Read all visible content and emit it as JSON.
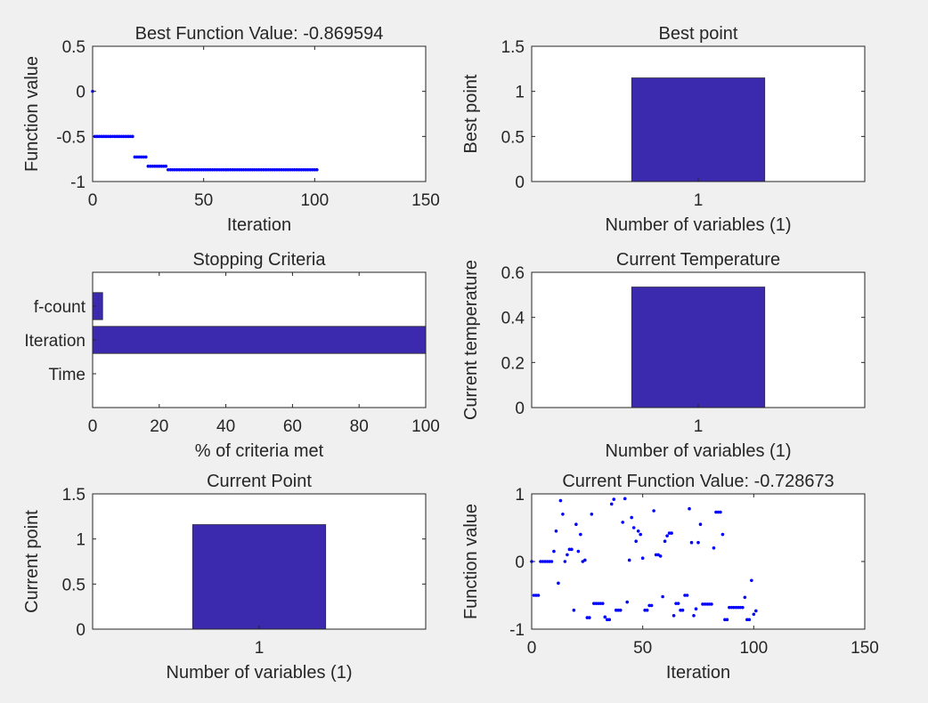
{
  "figure": {
    "background": "#f0f0f0",
    "bar_color": "#3b2aad",
    "marker_color": "#0000ff"
  },
  "chart_data": [
    {
      "id": "best-function-value",
      "type": "scatter",
      "title": "Best Function Value: -0.869594",
      "xlabel": "Iteration",
      "ylabel": "Function value",
      "xlim": [
        0,
        150
      ],
      "ylim": [
        -1,
        0.5
      ],
      "xticks": [
        0,
        50,
        100,
        150
      ],
      "xtick_labels": [
        "0",
        "50",
        "100",
        "150"
      ],
      "yticks": [
        -1,
        -0.5,
        0,
        0.5
      ],
      "ytick_labels": [
        "-1",
        "-0.5",
        "0",
        "0.5"
      ],
      "segments": [
        {
          "x_start": 0,
          "x_end": 0,
          "y": 0
        },
        {
          "x_start": 1,
          "x_end": 18,
          "y": -0.5
        },
        {
          "x_start": 19,
          "x_end": 24,
          "y": -0.728
        },
        {
          "x_start": 25,
          "x_end": 33,
          "y": -0.83
        },
        {
          "x_start": 34,
          "x_end": 101,
          "y": -0.869594
        }
      ]
    },
    {
      "id": "best-point",
      "type": "bar",
      "title": "Best point",
      "xlabel": "Number of variables (1)",
      "ylabel": "Best point",
      "categories": [
        "1"
      ],
      "values": [
        1.15
      ],
      "ylim": [
        0,
        1.5
      ],
      "yticks": [
        0,
        0.5,
        1,
        1.5
      ],
      "ytick_labels": [
        "0",
        "0.5",
        "1",
        "1.5"
      ]
    },
    {
      "id": "stopping-criteria",
      "type": "bar",
      "orientation": "horizontal",
      "title": "Stopping Criteria",
      "xlabel": "% of criteria met",
      "ylabel": "",
      "categories": [
        "Time",
        "Iteration",
        "f-count"
      ],
      "values": [
        0,
        100,
        3
      ],
      "xlim": [
        0,
        100
      ],
      "xticks": [
        0,
        20,
        40,
        60,
        80,
        100
      ],
      "xtick_labels": [
        "0",
        "20",
        "40",
        "60",
        "80",
        "100"
      ]
    },
    {
      "id": "current-temperature",
      "type": "bar",
      "title": "Current Temperature",
      "xlabel": "Number of variables (1)",
      "ylabel": "Current temperature",
      "categories": [
        "1"
      ],
      "values": [
        0.535
      ],
      "ylim": [
        0,
        0.6
      ],
      "yticks": [
        0,
        0.2,
        0.4,
        0.6
      ],
      "ytick_labels": [
        "0",
        "0.2",
        "0.4",
        "0.6"
      ]
    },
    {
      "id": "current-point",
      "type": "bar",
      "title": "Current Point",
      "xlabel": "Number of variables (1)",
      "ylabel": "Current point",
      "categories": [
        "1"
      ],
      "values": [
        1.16
      ],
      "ylim": [
        0,
        1.5
      ],
      "yticks": [
        0,
        0.5,
        1,
        1.5
      ],
      "ytick_labels": [
        "0",
        "0.5",
        "1",
        "1.5"
      ]
    },
    {
      "id": "current-function-value",
      "type": "scatter",
      "title": "Current Function Value: -0.728673",
      "xlabel": "Iteration",
      "ylabel": "Function value",
      "xlim": [
        0,
        150
      ],
      "ylim": [
        -1,
        1
      ],
      "xticks": [
        0,
        50,
        100,
        150
      ],
      "xtick_labels": [
        "0",
        "50",
        "100",
        "150"
      ],
      "yticks": [
        -1,
        0,
        1
      ],
      "ytick_labels": [
        "-1",
        "0",
        "1"
      ],
      "points": [
        [
          0,
          0
        ],
        [
          1,
          -0.5
        ],
        [
          2,
          -0.5
        ],
        [
          3,
          -0.5
        ],
        [
          4,
          0
        ],
        [
          5,
          0
        ],
        [
          6,
          0
        ],
        [
          7,
          0
        ],
        [
          8,
          0
        ],
        [
          9,
          0
        ],
        [
          10,
          0.15
        ],
        [
          11,
          0.45
        ],
        [
          12,
          -0.32
        ],
        [
          13,
          0.9
        ],
        [
          14,
          0.7
        ],
        [
          15,
          0
        ],
        [
          16,
          0.1
        ],
        [
          17,
          0.18
        ],
        [
          18,
          0.18
        ],
        [
          19,
          -0.72
        ],
        [
          20,
          0.55
        ],
        [
          21,
          0.15
        ],
        [
          22,
          0.4
        ],
        [
          23,
          0
        ],
        [
          24,
          0.02
        ],
        [
          25,
          -0.83
        ],
        [
          26,
          -0.83
        ],
        [
          27,
          0.7
        ],
        [
          28,
          -0.62
        ],
        [
          29,
          -0.62
        ],
        [
          30,
          -0.62
        ],
        [
          31,
          -0.62
        ],
        [
          32,
          -0.62
        ],
        [
          33,
          -0.82
        ],
        [
          34,
          -0.86
        ],
        [
          35,
          -0.86
        ],
        [
          36,
          0.85
        ],
        [
          37,
          0.92
        ],
        [
          38,
          -0.72
        ],
        [
          39,
          -0.72
        ],
        [
          40,
          -0.72
        ],
        [
          41,
          0.58
        ],
        [
          42,
          0.93
        ],
        [
          43,
          -0.6
        ],
        [
          44,
          0.02
        ],
        [
          45,
          0.65
        ],
        [
          46,
          0.5
        ],
        [
          47,
          0.3
        ],
        [
          48,
          0.45
        ],
        [
          49,
          0.4
        ],
        [
          50,
          0.05
        ],
        [
          51,
          -0.72
        ],
        [
          52,
          -0.72
        ],
        [
          53,
          -0.65
        ],
        [
          54,
          -0.65
        ],
        [
          55,
          0.75
        ],
        [
          56,
          0.1
        ],
        [
          57,
          0.1
        ],
        [
          58,
          0.08
        ],
        [
          59,
          -0.52
        ],
        [
          60,
          0.3
        ],
        [
          61,
          0.38
        ],
        [
          62,
          0.42
        ],
        [
          63,
          0.42
        ],
        [
          64,
          -0.8
        ],
        [
          65,
          -0.62
        ],
        [
          66,
          -0.62
        ],
        [
          67,
          -0.72
        ],
        [
          68,
          -0.72
        ],
        [
          69,
          -0.5
        ],
        [
          70,
          -0.5
        ],
        [
          71,
          0.78
        ],
        [
          72,
          0.28
        ],
        [
          73,
          -0.8
        ],
        [
          74,
          -0.7
        ],
        [
          75,
          0.28
        ],
        [
          76,
          0.55
        ],
        [
          77,
          -0.63
        ],
        [
          78,
          -0.63
        ],
        [
          79,
          -0.63
        ],
        [
          80,
          -0.63
        ],
        [
          81,
          -0.63
        ],
        [
          82,
          0.2
        ],
        [
          83,
          0.73
        ],
        [
          84,
          0.73
        ],
        [
          85,
          0.73
        ],
        [
          86,
          0.4
        ],
        [
          87,
          -0.86
        ],
        [
          88,
          -0.86
        ],
        [
          89,
          -0.68
        ],
        [
          90,
          -0.68
        ],
        [
          91,
          -0.68
        ],
        [
          92,
          -0.68
        ],
        [
          93,
          -0.68
        ],
        [
          94,
          -0.68
        ],
        [
          95,
          -0.68
        ],
        [
          96,
          -0.53
        ],
        [
          97,
          -0.86
        ],
        [
          98,
          -0.86
        ],
        [
          99,
          -0.28
        ],
        [
          100,
          -0.78
        ],
        [
          101,
          -0.73
        ]
      ]
    }
  ]
}
